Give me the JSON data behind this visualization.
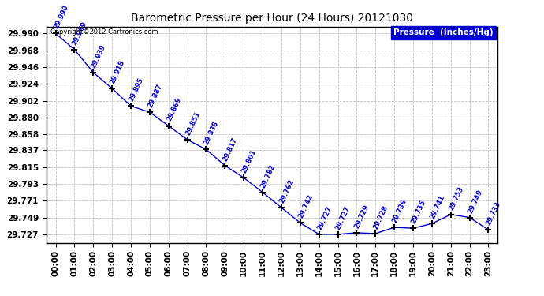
{
  "title": "Barometric Pressure per Hour (24 Hours) 20121030",
  "copyright": "Copyright©2012 Cartronics.com",
  "legend_label": "Pressure  (Inches/Hg)",
  "hours": [
    "00:00",
    "01:00",
    "02:00",
    "03:00",
    "04:00",
    "05:00",
    "06:00",
    "07:00",
    "08:00",
    "09:00",
    "10:00",
    "11:00",
    "12:00",
    "13:00",
    "14:00",
    "15:00",
    "16:00",
    "17:00",
    "18:00",
    "19:00",
    "20:00",
    "21:00",
    "22:00",
    "23:00"
  ],
  "values": [
    29.99,
    29.969,
    29.939,
    29.918,
    29.895,
    29.887,
    29.869,
    29.851,
    29.838,
    29.817,
    29.801,
    29.782,
    29.762,
    29.742,
    29.727,
    29.727,
    29.729,
    29.728,
    29.736,
    29.735,
    29.741,
    29.753,
    29.749,
    29.733
  ],
  "ylim_min": 29.716,
  "ylim_max": 29.999,
  "yticks": [
    29.727,
    29.749,
    29.771,
    29.793,
    29.815,
    29.837,
    29.858,
    29.88,
    29.902,
    29.924,
    29.946,
    29.968,
    29.99
  ],
  "line_color": "#0000cc",
  "marker_color": "#000000",
  "background_color": "#ffffff",
  "grid_color": "#c0c0c0",
  "title_color": "#000000",
  "label_color": "#0000cc",
  "legend_bg": "#0000cc",
  "legend_fg": "#ffffff"
}
